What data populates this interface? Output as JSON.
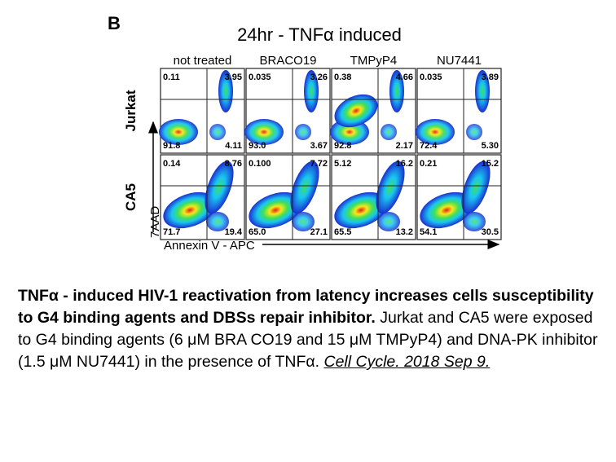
{
  "figure": {
    "panel_letter": "B",
    "title": "24hr - TNFα induced",
    "columns": [
      "not treated",
      "BRACO19",
      "TMPyP4",
      "NU7441"
    ],
    "rows": [
      "Jurkat",
      "CA5"
    ],
    "y_axis_label": "7AAD",
    "x_axis_label": "Annexin V - APC",
    "colors": {
      "blue": "#1a2fd0",
      "cyan": "#19c6f2",
      "green": "#3fe05a",
      "yellow": "#f7e818",
      "red": "#e6201d",
      "grid": "#222222"
    },
    "quadrants": [
      [
        {
          "ul": "0.11",
          "ur": "3.95",
          "ll": "91.8",
          "lr": "4.11"
        },
        {
          "ul": "0.035",
          "ur": "3.26",
          "ll": "93.0",
          "lr": "3.67"
        },
        {
          "ul": "0.38",
          "ur": "4.66",
          "ll": "92.8",
          "lr": "2.17"
        },
        {
          "ul": "0.035",
          "ur": "3.89",
          "ll": "72.4",
          "lr": "5.30"
        }
      ],
      [
        {
          "ul": "0.14",
          "ur": "8.76",
          "ll": "71.7",
          "lr": "19.4"
        },
        {
          "ul": "0.100",
          "ur": "7.72",
          "ll": "65.0",
          "lr": "27.1"
        },
        {
          "ul": "5.12",
          "ur": "16.2",
          "ll": "65.5",
          "lr": "13.2"
        },
        {
          "ul": "0.21",
          "ur": "15.2",
          "ll": "54.1",
          "lr": "30.5"
        }
      ]
    ]
  },
  "caption": {
    "bold": "TNFα - induced HIV-1 reactivation from latency increases cells susceptibility to G4 binding agents and DBSs repair inhibitor.",
    "body": "Jurkat and CA5 were exposed to G4 binding agents (6 μM BRA CO19 and 15 μM TMPyP4) and DNA-PK inhibitor (1.5 μM NU7441) in the presence of TNFα.",
    "citation": "Cell Cycle. 2018 Sep 9."
  }
}
